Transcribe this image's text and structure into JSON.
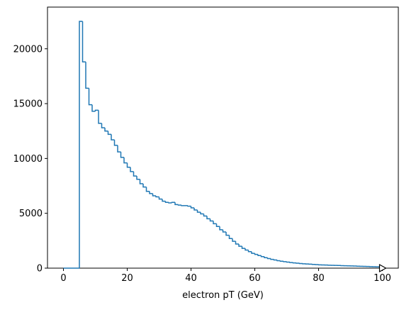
{
  "chart_data": {
    "type": "histogram",
    "x_label": "electron pT (GeV)",
    "color": "#1f77b4",
    "bins": [
      0,
      1,
      2,
      3,
      4,
      5,
      6,
      7,
      8,
      9,
      10,
      11,
      12,
      13,
      14,
      15,
      16,
      17,
      18,
      19,
      20,
      21,
      22,
      23,
      24,
      25,
      26,
      27,
      28,
      29,
      30,
      31,
      32,
      33,
      34,
      35,
      36,
      37,
      38,
      39,
      40,
      41,
      42,
      43,
      44,
      45,
      46,
      47,
      48,
      49,
      50,
      51,
      52,
      53,
      54,
      55,
      56,
      57,
      58,
      59,
      60,
      61,
      62,
      63,
      64,
      65,
      66,
      67,
      68,
      69,
      70,
      71,
      72,
      73,
      74,
      75,
      76,
      77,
      78,
      79,
      80,
      81,
      82,
      83,
      84,
      85,
      86,
      87,
      88,
      89,
      90,
      91,
      92,
      93,
      94,
      95,
      96,
      97,
      98,
      99,
      100
    ],
    "values": [
      0,
      0,
      0,
      0,
      0,
      22500,
      18800,
      16400,
      14900,
      14300,
      14400,
      13200,
      12800,
      12500,
      12200,
      11700,
      11200,
      10600,
      10100,
      9600,
      9200,
      8800,
      8400,
      8100,
      7700,
      7400,
      7000,
      6800,
      6600,
      6500,
      6300,
      6100,
      6000,
      5950,
      6000,
      5800,
      5750,
      5700,
      5700,
      5650,
      5500,
      5300,
      5100,
      4950,
      4750,
      4500,
      4300,
      4050,
      3800,
      3500,
      3300,
      3000,
      2700,
      2450,
      2200,
      2000,
      1800,
      1650,
      1500,
      1350,
      1250,
      1150,
      1050,
      950,
      870,
      800,
      740,
      680,
      630,
      590,
      550,
      510,
      480,
      450,
      420,
      400,
      380,
      360,
      340,
      320,
      300,
      290,
      280,
      270,
      260,
      250,
      240,
      230,
      220,
      210,
      200,
      190,
      180,
      170,
      160,
      150,
      140,
      130,
      120,
      110
    ],
    "xlim": [
      -5,
      105
    ],
    "ylim": [
      0,
      23800
    ],
    "xticks": [
      0,
      20,
      40,
      60,
      80,
      100
    ],
    "yticks": [
      0,
      5000,
      10000,
      15000,
      20000
    ]
  }
}
